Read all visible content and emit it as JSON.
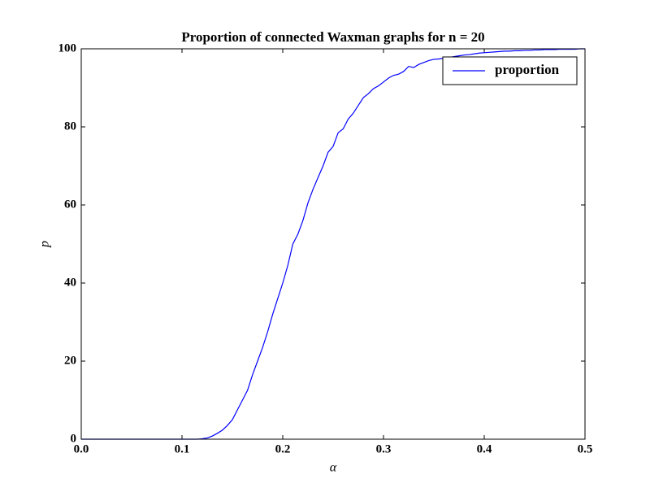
{
  "chart_data": {
    "type": "line",
    "title": "Proportion of connected Waxman graphs for n = 20",
    "xlabel": "α",
    "ylabel": "p",
    "x": [
      0,
      0.005,
      0.01,
      0.015,
      0.02,
      0.025,
      0.03,
      0.035,
      0.04,
      0.045,
      0.05,
      0.055,
      0.06,
      0.065,
      0.07,
      0.075,
      0.08,
      0.085,
      0.09,
      0.095,
      0.1,
      0.105,
      0.11,
      0.115,
      0.12,
      0.125,
      0.13,
      0.135,
      0.14,
      0.145,
      0.15,
      0.155,
      0.16,
      0.165,
      0.17,
      0.175,
      0.18,
      0.185,
      0.19,
      0.195,
      0.2,
      0.205,
      0.21,
      0.215,
      0.22,
      0.225,
      0.23,
      0.235,
      0.24,
      0.245,
      0.25,
      0.255,
      0.26,
      0.265,
      0.27,
      0.275,
      0.28,
      0.285,
      0.29,
      0.295,
      0.3,
      0.305,
      0.31,
      0.315,
      0.32,
      0.325,
      0.33,
      0.335,
      0.34,
      0.345,
      0.35,
      0.355,
      0.36,
      0.365,
      0.37,
      0.375,
      0.38,
      0.385,
      0.39,
      0.395,
      0.4,
      0.405,
      0.41,
      0.415,
      0.42,
      0.425,
      0.43,
      0.435,
      0.44,
      0.445,
      0.45,
      0.455,
      0.46,
      0.465,
      0.47,
      0.475,
      0.48,
      0.485,
      0.49,
      0.495,
      0.5
    ],
    "series": [
      {
        "name": "proportion",
        "color": "#0000ff",
        "values": [
          0,
          0,
          0,
          0,
          0,
          0,
          0,
          0,
          0,
          0,
          0,
          0,
          0,
          0,
          0,
          0,
          0,
          0,
          0,
          0,
          0,
          0,
          0,
          0,
          0.1,
          0.3,
          0.8,
          1.5,
          2.3,
          3.5,
          5,
          7.5,
          10,
          12.5,
          16.5,
          20,
          23.5,
          27.5,
          32,
          36,
          40,
          44.5,
          50,
          52.5,
          56,
          60.5,
          64,
          67,
          70,
          73.5,
          75,
          78.5,
          79.5,
          82,
          83.5,
          85.5,
          87.5,
          88.5,
          89.8,
          90.5,
          91.5,
          92.5,
          93.2,
          93.5,
          94.2,
          95.5,
          95.2,
          96,
          96.5,
          97,
          97.3,
          97.4,
          97.6,
          97.8,
          98,
          98.2,
          98.4,
          98.5,
          98.7,
          98.9,
          99,
          99.1,
          99.2,
          99.3,
          99.4,
          99.4,
          99.5,
          99.5,
          99.6,
          99.6,
          99.7,
          99.7,
          99.8,
          99.8,
          99.8,
          99.9,
          99.9,
          99.9,
          99.9,
          100,
          100
        ]
      }
    ],
    "xlim": [
      0,
      0.5
    ],
    "xticks": [
      {
        "value": 0,
        "label": "0.0"
      },
      0.1,
      0.2,
      0.3,
      0.4,
      0.5
    ],
    "ylim": [
      0,
      100
    ],
    "yticks": [
      0,
      20,
      40,
      60,
      80,
      100
    ],
    "legend": "upper right"
  }
}
